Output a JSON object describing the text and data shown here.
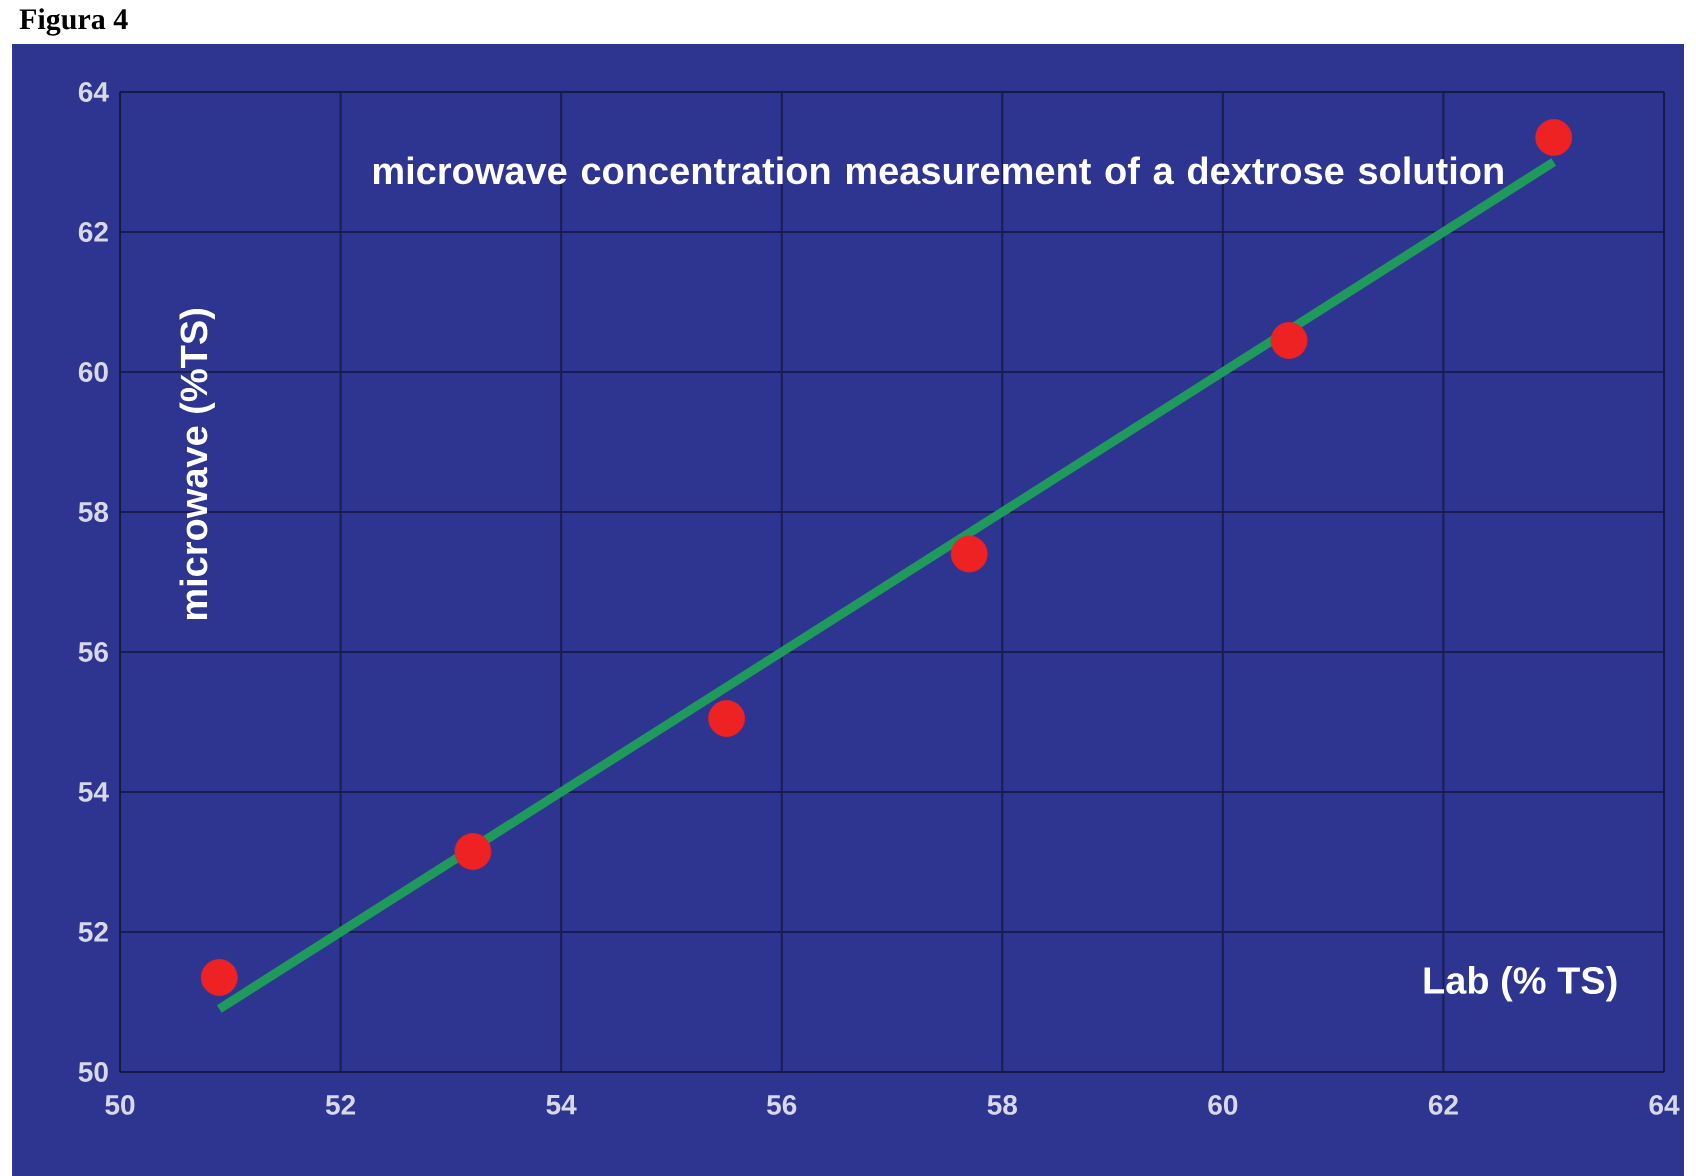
{
  "chart_data": {
    "type": "scatter",
    "title": "Figura 4",
    "subtitle": "microwave concentration measurement  of a dextrose solution",
    "xlabel": "Lab (% TS)",
    "ylabel": "microwave (%TS)",
    "series": [
      {
        "type": "scatter",
        "color": "#ee2222",
        "marker": "circle",
        "x": [
          50.9,
          53.2,
          55.5,
          57.7,
          60.6,
          63.0
        ],
        "values": [
          51.35,
          53.15,
          55.05,
          57.4,
          60.45,
          63.35
        ]
      },
      {
        "type": "line",
        "color": "#1f9a5c",
        "marker": "none",
        "line_style": "solid",
        "x": [
          50.9,
          63.0
        ],
        "values": [
          50.9,
          63.0
        ]
      }
    ],
    "xlim": [
      50,
      64
    ],
    "ylim": [
      50,
      64
    ],
    "xticks": [
      50,
      52,
      54,
      56,
      58,
      60,
      62,
      64
    ],
    "yticks": [
      50,
      52,
      54,
      56,
      58,
      60,
      62,
      64
    ],
    "grid": true
  }
}
